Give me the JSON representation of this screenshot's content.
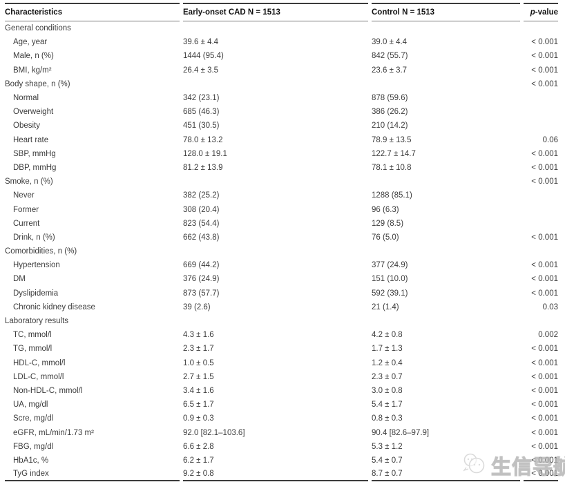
{
  "table": {
    "header": {
      "characteristics": "Characteristics",
      "cad": "Early-onset CAD N = 1513",
      "control": "Control N = 1513",
      "pvalue_italic": "p",
      "pvalue_rest": "-value"
    },
    "rows": [
      {
        "label": "General conditions",
        "indent": false,
        "cad": "",
        "control": "",
        "p": ""
      },
      {
        "label": "Age, year",
        "indent": true,
        "cad": "39.6 ± 4.4",
        "control": "39.0 ± 4.4",
        "p": "< 0.001"
      },
      {
        "label": "Male, n (%)",
        "indent": true,
        "cad": "1444 (95.4)",
        "control": "842 (55.7)",
        "p": "< 0.001"
      },
      {
        "label": "BMI, kg/m²",
        "indent": true,
        "cad": "26.4 ± 3.5",
        "control": "23.6 ± 3.7",
        "p": "< 0.001"
      },
      {
        "label": "Body shape, n (%)",
        "indent": false,
        "cad": "",
        "control": "",
        "p": "< 0.001"
      },
      {
        "label": "Normal",
        "indent": true,
        "cad": "342 (23.1)",
        "control": "878 (59.6)",
        "p": ""
      },
      {
        "label": "Overweight",
        "indent": true,
        "cad": "685 (46.3)",
        "control": "386 (26.2)",
        "p": ""
      },
      {
        "label": "Obesity",
        "indent": true,
        "cad": "451 (30.5)",
        "control": "210 (14.2)",
        "p": ""
      },
      {
        "label": "Heart rate",
        "indent": true,
        "cad": "78.0 ± 13.2",
        "control": "78.9 ± 13.5",
        "p": "0.06"
      },
      {
        "label": "SBP, mmHg",
        "indent": true,
        "cad": "128.0 ± 19.1",
        "control": "122.7 ± 14.7",
        "p": "< 0.001"
      },
      {
        "label": "DBP, mmHg",
        "indent": true,
        "cad": "81.2 ± 13.9",
        "control": "78.1 ± 10.8",
        "p": "< 0.001"
      },
      {
        "label": "Smoke, n (%)",
        "indent": false,
        "cad": "",
        "control": "",
        "p": "< 0.001"
      },
      {
        "label": "Never",
        "indent": true,
        "cad": "382 (25.2)",
        "control": "1288 (85.1)",
        "p": ""
      },
      {
        "label": "Former",
        "indent": true,
        "cad": "308 (20.4)",
        "control": "96 (6.3)",
        "p": ""
      },
      {
        "label": "Current",
        "indent": true,
        "cad": "823 (54.4)",
        "control": "129 (8.5)",
        "p": ""
      },
      {
        "label": "Drink, n (%)",
        "indent": true,
        "cad": "662 (43.8)",
        "control": "76 (5.0)",
        "p": "< 0.001"
      },
      {
        "label": "Comorbidities, n (%)",
        "indent": false,
        "cad": "",
        "control": "",
        "p": ""
      },
      {
        "label": "Hypertension",
        "indent": true,
        "cad": "669 (44.2)",
        "control": "377 (24.9)",
        "p": "< 0.001"
      },
      {
        "label": "DM",
        "indent": true,
        "cad": "376 (24.9)",
        "control": "151 (10.0)",
        "p": "< 0.001"
      },
      {
        "label": "Dyslipidemia",
        "indent": true,
        "cad": "873 (57.7)",
        "control": "592 (39.1)",
        "p": "< 0.001"
      },
      {
        "label": "Chronic kidney disease",
        "indent": true,
        "cad": "39 (2.6)",
        "control": "21 (1.4)",
        "p": "0.03"
      },
      {
        "label": "Laboratory results",
        "indent": false,
        "cad": "",
        "control": "",
        "p": ""
      },
      {
        "label": "TC, mmol/l",
        "indent": true,
        "cad": "4.3 ± 1.6",
        "control": "4.2 ± 0.8",
        "p": "0.002"
      },
      {
        "label": "TG, mmol/l",
        "indent": true,
        "cad": "2.3 ± 1.7",
        "control": "1.7 ± 1.3",
        "p": "< 0.001"
      },
      {
        "label": "HDL-C, mmol/l",
        "indent": true,
        "cad": "1.0 ± 0.5",
        "control": "1.2 ± 0.4",
        "p": "< 0.001"
      },
      {
        "label": "LDL-C, mmol/l",
        "indent": true,
        "cad": "2.7 ± 1.5",
        "control": "2.3 ± 0.7",
        "p": "< 0.001"
      },
      {
        "label": "Non-HDL-C, mmol/l",
        "indent": true,
        "cad": "3.4 ± 1.6",
        "control": "3.0 ± 0.8",
        "p": "< 0.001"
      },
      {
        "label": "UA, mg/dl",
        "indent": true,
        "cad": "6.5 ± 1.7",
        "control": "5.4 ± 1.7",
        "p": "< 0.001"
      },
      {
        "label": "Scre, mg/dl",
        "indent": true,
        "cad": "0.9 ± 0.3",
        "control": "0.8 ± 0.3",
        "p": "< 0.001"
      },
      {
        "label": "eGFR, mL/min/1.73 m²",
        "indent": true,
        "cad": "92.0 [82.1–103.6]",
        "control": "90.4 [82.6–97.9]",
        "p": "< 0.001"
      },
      {
        "label": "FBG, mg/dl",
        "indent": true,
        "cad": "6.6 ± 2.8",
        "control": "5.3 ± 1.2",
        "p": "< 0.001"
      },
      {
        "label": "HbA1c, %",
        "indent": true,
        "cad": "6.2 ± 1.7",
        "control": "5.4 ± 0.7",
        "p": "< 0.001"
      },
      {
        "label": "TyG index",
        "indent": true,
        "cad": "9.2 ± 0.8",
        "control": "8.7 ± 0.7",
        "p": "< 0.001"
      }
    ]
  },
  "watermark": {
    "text": "生信导航"
  }
}
